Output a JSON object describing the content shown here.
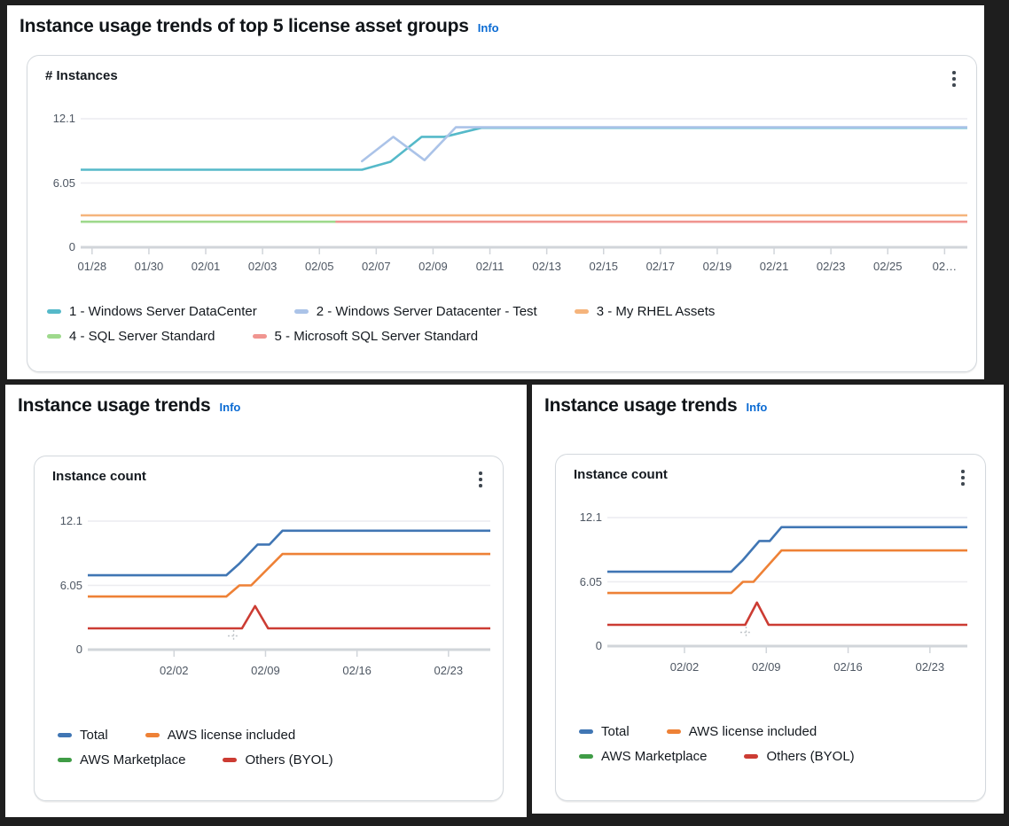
{
  "panels": {
    "top": {
      "title": "Instance usage trends of top 5 license asset groups",
      "info": "Info",
      "card_title": "# Instances"
    },
    "bottom_left": {
      "title": "Instance usage trends",
      "info": "Info",
      "card_title": "Instance count"
    },
    "bottom_right": {
      "title": "Instance usage trends",
      "info": "Info",
      "card_title": "Instance count"
    }
  },
  "colors": {
    "info_link": "#0b6bd3",
    "grid_light": "#ececf0",
    "axis_gray": "#d1d5da",
    "tick_text": "#4e5763"
  },
  "chart_data": [
    {
      "id": "top",
      "type": "line",
      "title": "# Instances",
      "ylim": [
        0,
        12.1
      ],
      "y_ticks": [
        12.1,
        6.05,
        0
      ],
      "y_tick_labels": [
        "12.1",
        "6.05",
        "0"
      ],
      "xlim": [
        -0.4,
        30.8
      ],
      "x_tick_days": [
        0,
        2,
        4,
        6,
        8,
        10,
        12,
        14,
        16,
        18,
        20,
        22,
        24,
        26,
        28,
        30
      ],
      "x_tick_labels": [
        "01/28",
        "01/30",
        "02/01",
        "02/03",
        "02/05",
        "02/07",
        "02/09",
        "02/11",
        "02/13",
        "02/15",
        "02/17",
        "02/19",
        "02/21",
        "02/23",
        "02/25",
        "02…"
      ],
      "series": [
        {
          "name": "1 - Windows Server DataCenter",
          "color": "#55b9c9",
          "points": [
            [
              -0.4,
              7.3
            ],
            [
              9.5,
              7.3
            ],
            [
              10.5,
              8.05
            ],
            [
              11.6,
              10.4
            ],
            [
              12.4,
              10.4
            ],
            [
              13.7,
              11.25
            ],
            [
              30.8,
              11.25
            ]
          ]
        },
        {
          "name": "2 - Windows Server Datacenter - Test",
          "color": "#abc3e8",
          "points": [
            [
              9.5,
              8.1
            ],
            [
              10.6,
              10.4
            ],
            [
              11.7,
              8.2
            ],
            [
              12.8,
              11.3
            ],
            [
              30.8,
              11.3
            ]
          ]
        },
        {
          "name": "3 - My RHEL Assets",
          "color": "#f5b47c",
          "points": [
            [
              -0.4,
              3.0
            ],
            [
              30.8,
              3.0
            ]
          ]
        },
        {
          "name": "4 - SQL Server Standard",
          "color": "#9ed98c",
          "points": [
            [
              -0.4,
              2.4
            ],
            [
              8.6,
              2.4
            ]
          ]
        },
        {
          "name": "5 - Microsoft SQL Server Standard",
          "color": "#f09590",
          "points": [
            [
              8.6,
              2.4
            ],
            [
              30.8,
              2.4
            ]
          ]
        }
      ],
      "legend_rows": [
        [
          0,
          1,
          2
        ],
        [
          3,
          4
        ]
      ]
    },
    {
      "id": "bl",
      "type": "line",
      "title": "Instance count",
      "ylim": [
        0,
        12.1
      ],
      "y_ticks": [
        12.1,
        6.05,
        0
      ],
      "y_tick_labels": [
        "12.1",
        "6.05",
        "0"
      ],
      "xlim": [
        -0.6,
        30.2
      ],
      "x_tick_days": [
        6,
        13,
        20,
        27
      ],
      "x_tick_labels": [
        "02/02",
        "02/09",
        "02/16",
        "02/23"
      ],
      "series": [
        {
          "name": "Total",
          "color": "#4076b4",
          "points": [
            [
              -0.6,
              7.0
            ],
            [
              10,
              7.0
            ],
            [
              11,
              8.1
            ],
            [
              12.4,
              9.9
            ],
            [
              13.3,
              9.9
            ],
            [
              14.3,
              11.2
            ],
            [
              30.2,
              11.2
            ]
          ]
        },
        {
          "name": "AWS license included",
          "color": "#ee8136",
          "points": [
            [
              -0.6,
              5.0
            ],
            [
              10,
              5.0
            ],
            [
              11,
              6.05
            ],
            [
              11.9,
              6.05
            ],
            [
              14.3,
              9.0
            ],
            [
              30.2,
              9.0
            ]
          ]
        },
        {
          "name": "AWS Marketplace",
          "color": "#3f9c46",
          "points": []
        },
        {
          "name": "Others (BYOL)",
          "color": "#cc3c33",
          "points": [
            [
              -0.6,
              2.0
            ],
            [
              11.2,
              2.0
            ],
            [
              12.2,
              4.1
            ],
            [
              13.2,
              2.0
            ],
            [
              30.2,
              2.0
            ]
          ]
        }
      ],
      "legend_rows": [
        [
          0,
          1
        ],
        [
          2,
          3
        ]
      ]
    },
    {
      "id": "br",
      "type": "line",
      "title": "Instance count",
      "ylim": [
        0,
        12.1
      ],
      "y_ticks": [
        12.1,
        6.05,
        0
      ],
      "y_tick_labels": [
        "12.1",
        "6.05",
        "0"
      ],
      "xlim": [
        -0.6,
        30.2
      ],
      "x_tick_days": [
        6,
        13,
        20,
        27
      ],
      "x_tick_labels": [
        "02/02",
        "02/09",
        "02/16",
        "02/23"
      ],
      "series": [
        {
          "name": "Total",
          "color": "#4076b4",
          "points": [
            [
              -0.6,
              7.0
            ],
            [
              10,
              7.0
            ],
            [
              11,
              8.1
            ],
            [
              12.4,
              9.9
            ],
            [
              13.3,
              9.9
            ],
            [
              14.3,
              11.2
            ],
            [
              30.2,
              11.2
            ]
          ]
        },
        {
          "name": "AWS license included",
          "color": "#ee8136",
          "points": [
            [
              -0.6,
              5.0
            ],
            [
              10,
              5.0
            ],
            [
              11,
              6.05
            ],
            [
              11.9,
              6.05
            ],
            [
              14.3,
              9.0
            ],
            [
              30.2,
              9.0
            ]
          ]
        },
        {
          "name": "AWS Marketplace",
          "color": "#3f9c46",
          "points": []
        },
        {
          "name": "Others (BYOL)",
          "color": "#cc3c33",
          "points": [
            [
              -0.6,
              2.0
            ],
            [
              11.2,
              2.0
            ],
            [
              12.2,
              4.1
            ],
            [
              13.2,
              2.0
            ],
            [
              30.2,
              2.0
            ]
          ]
        }
      ],
      "legend_rows": [
        [
          0,
          1
        ],
        [
          2,
          3
        ]
      ]
    }
  ]
}
